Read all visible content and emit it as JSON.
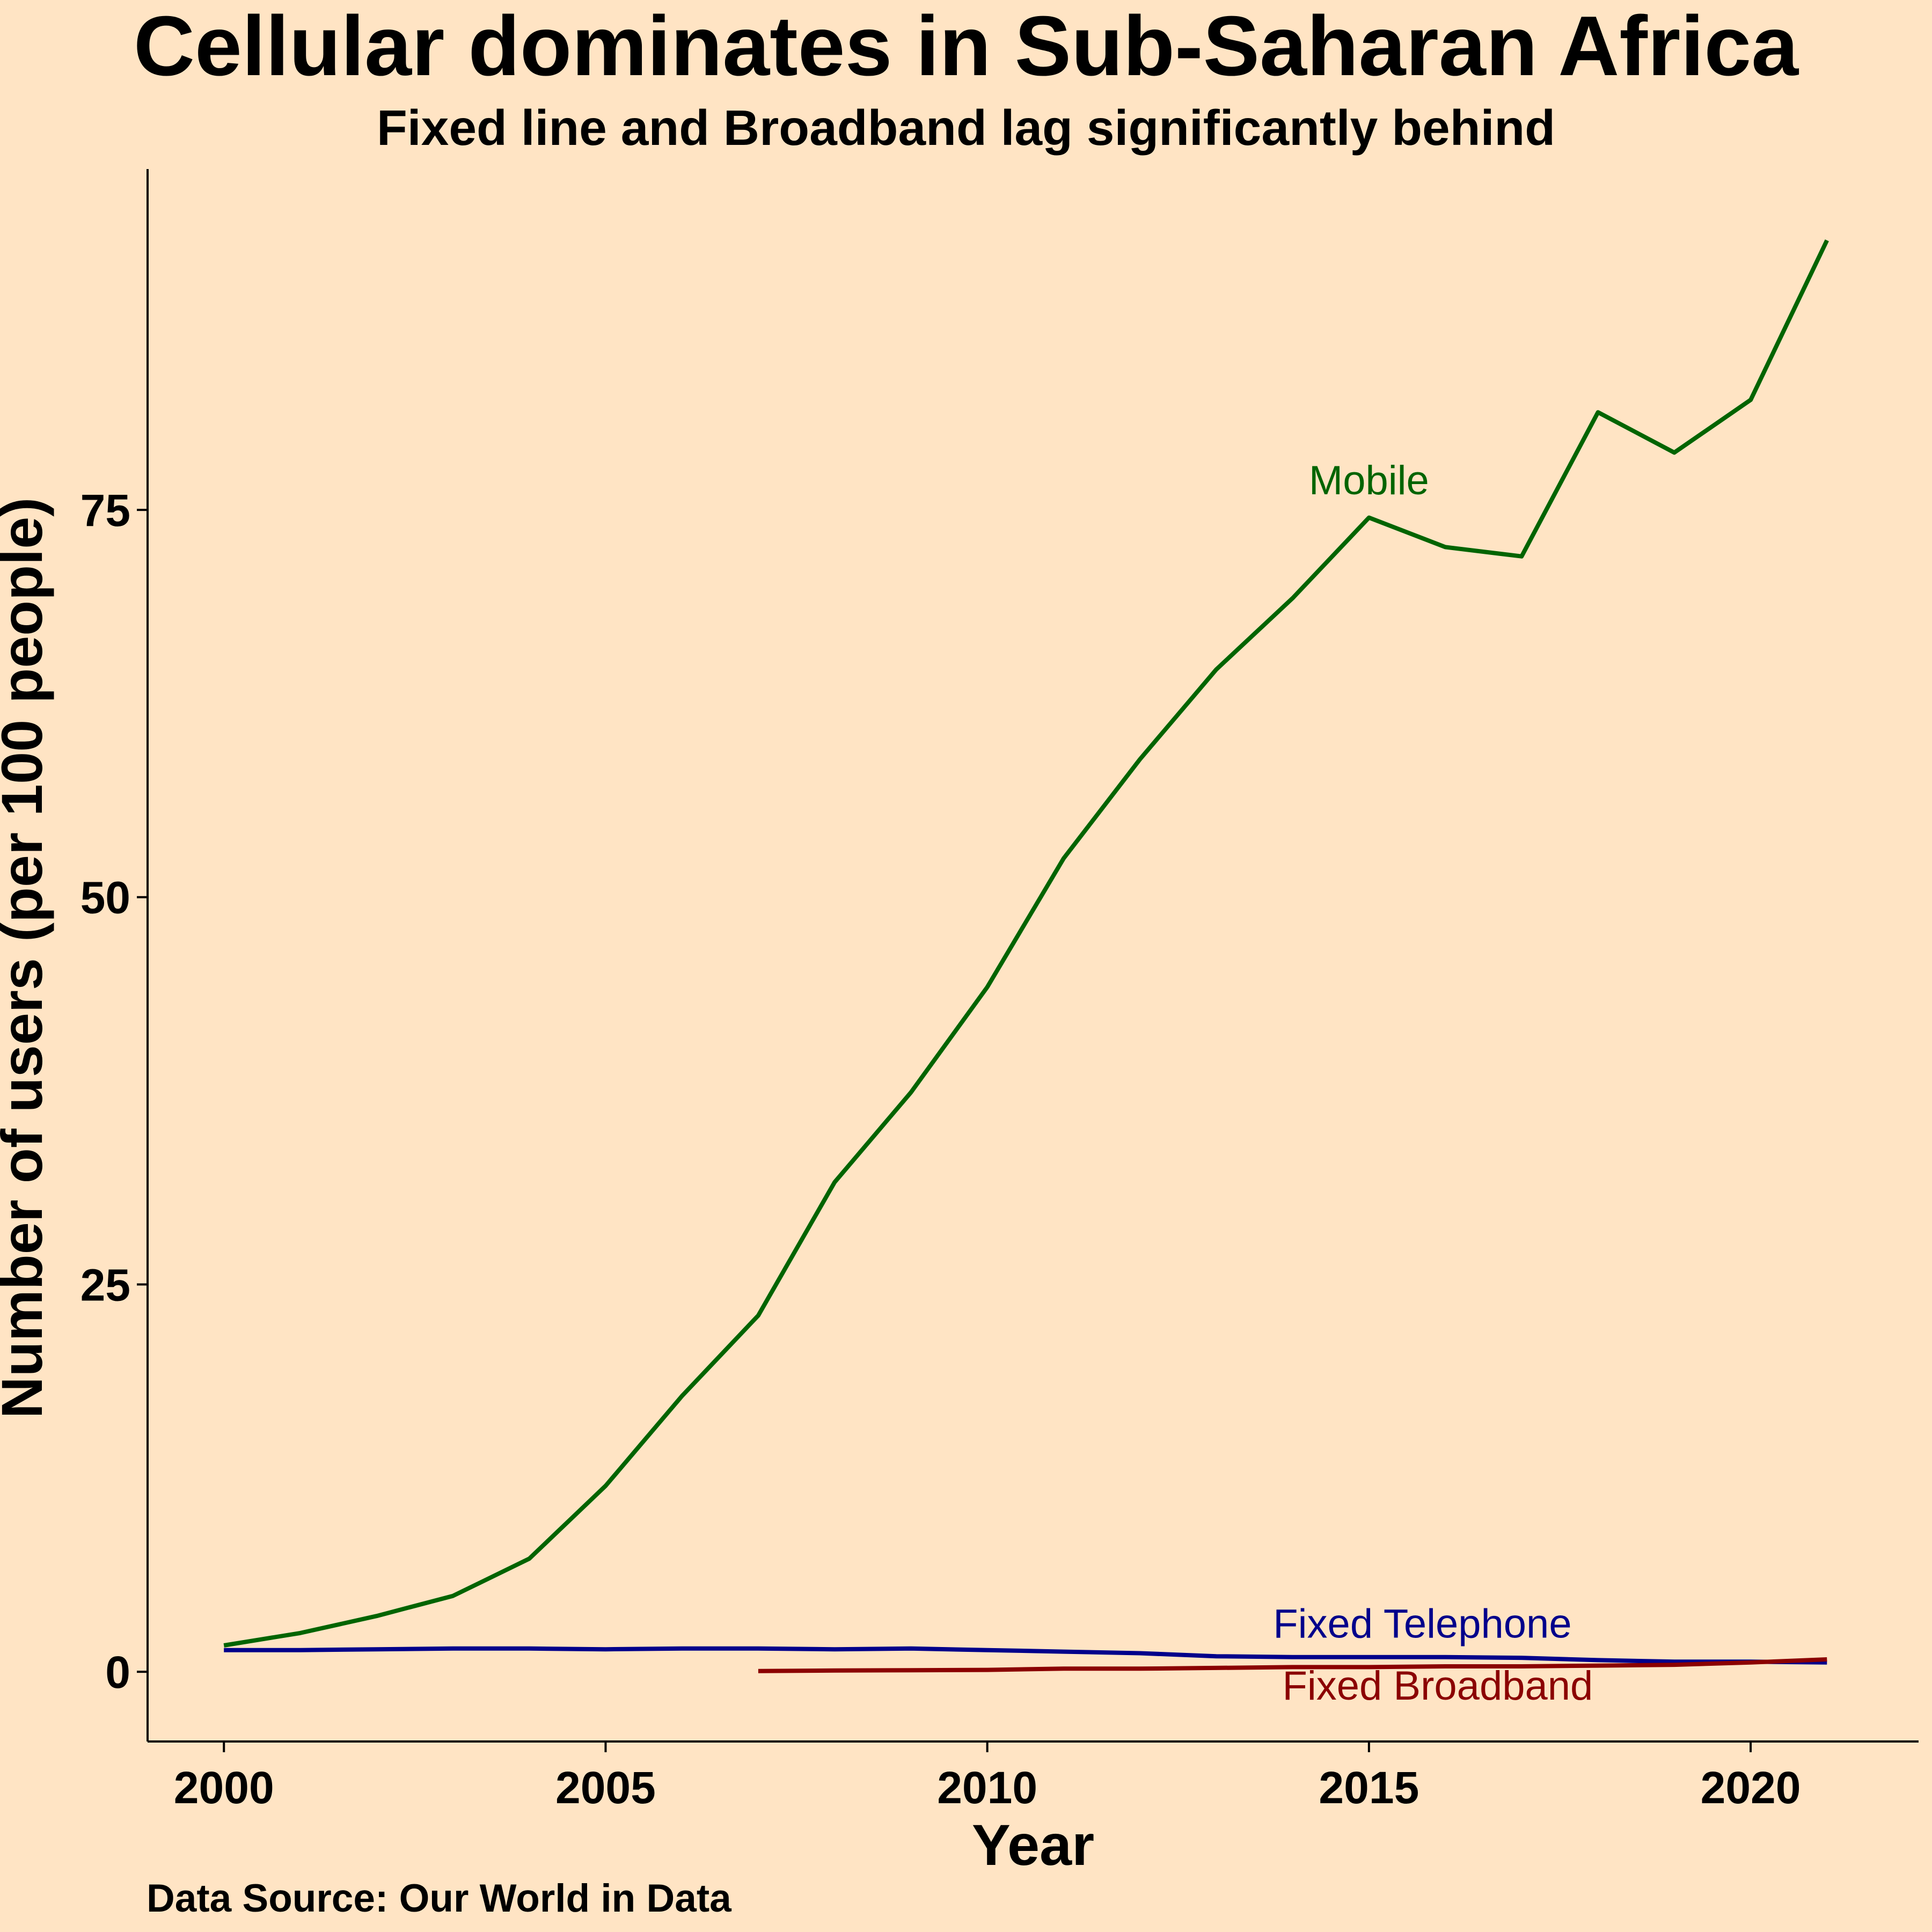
{
  "chart_data": {
    "type": "line",
    "title": "Cellular dominates in Sub-Saharan Africa",
    "subtitle": "Fixed line and Broadband lag significantly behind",
    "xlabel": "Year",
    "ylabel": "Number of users (per 100 people)",
    "caption": "Data Source: Our World in Data",
    "xlim": [
      1999,
      2022.2
    ],
    "ylim": [
      -4.5,
      97
    ],
    "x_ticks": [
      2000,
      2005,
      2010,
      2015,
      2020
    ],
    "y_ticks": [
      0,
      25,
      50,
      75
    ],
    "grid": false,
    "legend": "none",
    "series": [
      {
        "name": "Mobile",
        "color": "#006400",
        "label_year": 2015,
        "label_value": 76,
        "x": [
          2000,
          2001,
          2002,
          2003,
          2004,
          2005,
          2006,
          2007,
          2008,
          2009,
          2010,
          2011,
          2012,
          2013,
          2014,
          2015,
          2016,
          2017,
          2018,
          2019,
          2020,
          2021
        ],
        "values": [
          1.7,
          2.5,
          3.6,
          4.9,
          7.3,
          12.0,
          17.8,
          23.0,
          31.6,
          37.4,
          44.2,
          52.5,
          58.9,
          64.7,
          69.3,
          74.5,
          72.6,
          72.0,
          81.3,
          78.7,
          82.1,
          92.4
        ]
      },
      {
        "name": "Fixed Telephone",
        "color": "#00008B",
        "label_year": 2015.7,
        "label_value": 2.2,
        "x": [
          2000,
          2001,
          2002,
          2003,
          2004,
          2005,
          2006,
          2007,
          2008,
          2009,
          2010,
          2011,
          2012,
          2013,
          2014,
          2015,
          2016,
          2017,
          2018,
          2019,
          2020,
          2021
        ],
        "values": [
          1.4,
          1.4,
          1.45,
          1.5,
          1.5,
          1.45,
          1.5,
          1.5,
          1.45,
          1.5,
          1.4,
          1.3,
          1.2,
          1.0,
          0.95,
          0.95,
          0.95,
          0.9,
          0.75,
          0.65,
          0.65,
          0.6
        ]
      },
      {
        "name": "Fixed Broadband",
        "color": "#8B0000",
        "label_year": 2015.9,
        "label_value": -1.8,
        "x": [
          2007,
          2008,
          2009,
          2010,
          2011,
          2012,
          2013,
          2014,
          2015,
          2016,
          2017,
          2018,
          2019,
          2020,
          2021
        ],
        "values": [
          0.05,
          0.08,
          0.1,
          0.12,
          0.2,
          0.2,
          0.25,
          0.3,
          0.3,
          0.35,
          0.35,
          0.4,
          0.45,
          0.6,
          0.8
        ]
      }
    ]
  }
}
